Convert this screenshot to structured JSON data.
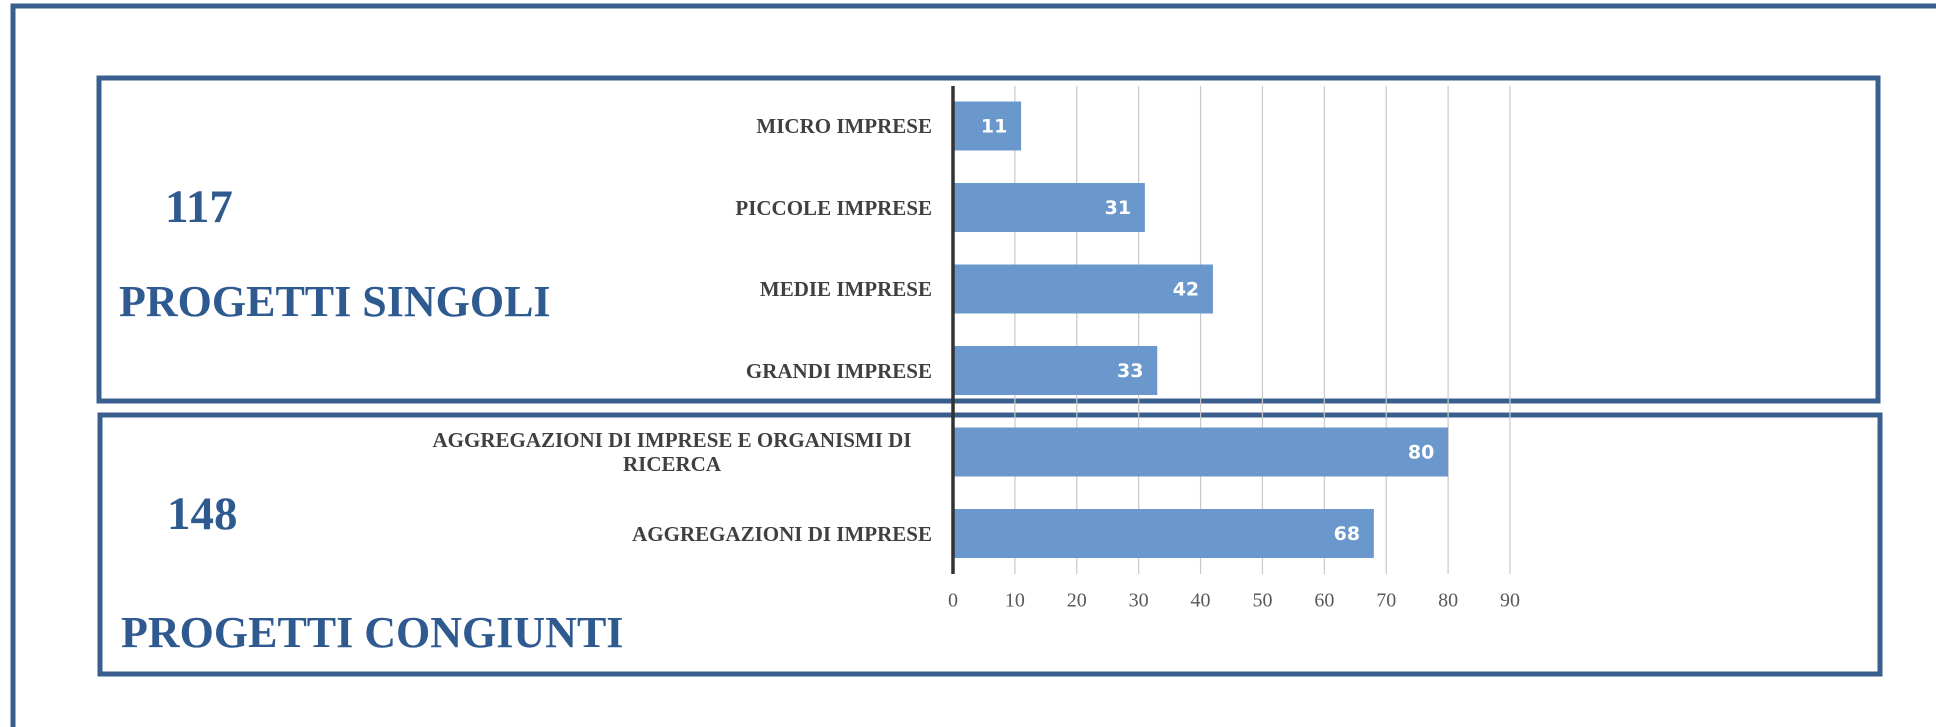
{
  "chart_data": {
    "type": "bar",
    "orientation": "horizontal",
    "categories": [
      "MICRO IMPRESE",
      "PICCOLE IMPRESE",
      "MEDIE IMPRESE",
      "GRANDI IMPRESE",
      "AGGREGAZIONI DI IMPRESE E ORGANISMI DI RICERCA",
      "AGGREGAZIONI DI IMPRESE"
    ],
    "values": [
      11,
      31,
      42,
      33,
      80,
      68
    ],
    "color": "#6a98cc",
    "xlim": [
      0,
      90
    ],
    "xticks": [
      0,
      10,
      20,
      30,
      40,
      50,
      60,
      70,
      80,
      90
    ],
    "grid": true,
    "groups": [
      {
        "total": 117,
        "label": "PROGETTI SINGOLI"
      },
      {
        "total": 148,
        "label": "PROGETTI CONGIUNTI"
      }
    ]
  }
}
